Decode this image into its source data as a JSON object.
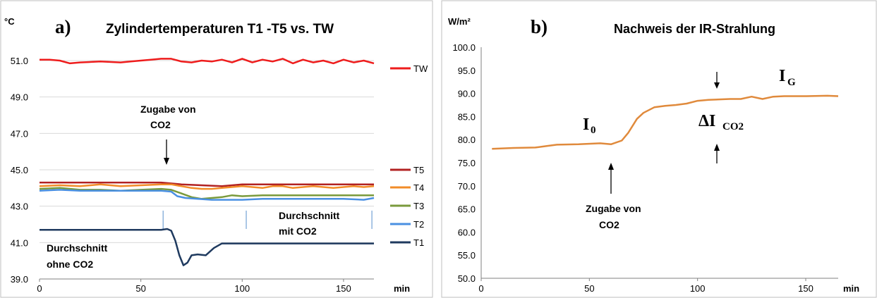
{
  "chart_data": [
    {
      "panel_label": "a)",
      "type": "line",
      "title": "Zylindertemperaturen T1 -T5 vs. TW",
      "ylabel": "°C",
      "xlabel": "min",
      "xlim": [
        0,
        165
      ],
      "ylim": [
        39.0,
        52.0
      ],
      "x_ticks": [
        0,
        50,
        100,
        150
      ],
      "y_ticks": [
        "39.0",
        "41.0",
        "43.0",
        "45.0",
        "47.0",
        "49.0",
        "51.0"
      ],
      "grid": "horizontal",
      "legend_placement": "right",
      "series": [
        {
          "name": "TW",
          "color": "#ee1c1c",
          "x": [
            0,
            5,
            10,
            15,
            20,
            30,
            40,
            45,
            50,
            55,
            60,
            65,
            70,
            75,
            80,
            85,
            90,
            95,
            100,
            105,
            110,
            115,
            120,
            125,
            130,
            135,
            140,
            145,
            150,
            155,
            160,
            165
          ],
          "values": [
            51.05,
            51.05,
            51.0,
            50.85,
            50.9,
            50.95,
            50.9,
            50.95,
            51.0,
            51.05,
            51.1,
            51.1,
            50.95,
            50.9,
            51.0,
            50.95,
            51.05,
            50.9,
            51.1,
            50.9,
            51.05,
            50.95,
            51.1,
            50.85,
            51.05,
            50.9,
            51.0,
            50.85,
            51.05,
            50.9,
            51.0,
            50.85
          ]
        },
        {
          "name": "T5",
          "color": "#b22222",
          "x": [
            0,
            20,
            40,
            60,
            65,
            70,
            80,
            90,
            100,
            110,
            120,
            130,
            140,
            150,
            160,
            165
          ],
          "values": [
            44.3,
            44.3,
            44.3,
            44.3,
            44.25,
            44.2,
            44.15,
            44.1,
            44.2,
            44.2,
            44.2,
            44.2,
            44.2,
            44.2,
            44.2,
            44.2
          ]
        },
        {
          "name": "T4",
          "color": "#f28c28",
          "x": [
            0,
            10,
            20,
            30,
            40,
            50,
            60,
            65,
            70,
            75,
            80,
            85,
            90,
            95,
            100,
            105,
            110,
            115,
            120,
            125,
            130,
            135,
            140,
            145,
            150,
            155,
            160,
            165
          ],
          "values": [
            44.1,
            44.15,
            44.1,
            44.2,
            44.1,
            44.15,
            44.2,
            44.2,
            44.1,
            44.0,
            43.95,
            43.95,
            44.0,
            44.05,
            44.1,
            44.05,
            44.0,
            44.1,
            44.1,
            44.0,
            44.05,
            44.1,
            44.05,
            44.0,
            44.05,
            44.1,
            44.05,
            44.1
          ]
        },
        {
          "name": "T3",
          "color": "#7a9a3c",
          "x": [
            0,
            10,
            20,
            30,
            40,
            50,
            60,
            65,
            70,
            75,
            80,
            85,
            90,
            95,
            100,
            110,
            120,
            130,
            140,
            150,
            160,
            165
          ],
          "values": [
            43.95,
            44.0,
            43.9,
            43.9,
            43.85,
            43.9,
            43.95,
            43.9,
            43.7,
            43.5,
            43.4,
            43.45,
            43.5,
            43.6,
            43.55,
            43.6,
            43.6,
            43.6,
            43.6,
            43.6,
            43.6,
            43.6
          ]
        },
        {
          "name": "T2",
          "color": "#4a90e2",
          "x": [
            0,
            10,
            20,
            30,
            40,
            50,
            60,
            65,
            68,
            72,
            78,
            85,
            90,
            100,
            110,
            120,
            130,
            140,
            150,
            160,
            165
          ],
          "values": [
            43.85,
            43.9,
            43.85,
            43.85,
            43.85,
            43.85,
            43.85,
            43.8,
            43.55,
            43.45,
            43.4,
            43.35,
            43.35,
            43.35,
            43.4,
            43.4,
            43.4,
            43.4,
            43.4,
            43.35,
            43.45
          ]
        },
        {
          "name": "T1",
          "color": "#1f3a5f",
          "x": [
            0,
            20,
            40,
            60,
            63,
            65,
            67,
            69,
            71,
            73,
            75,
            78,
            82,
            86,
            90,
            95,
            100,
            120,
            140,
            160,
            165
          ],
          "values": [
            41.7,
            41.7,
            41.7,
            41.7,
            41.75,
            41.65,
            41.1,
            40.3,
            39.75,
            39.9,
            40.3,
            40.35,
            40.3,
            40.7,
            40.95,
            40.95,
            40.95,
            40.95,
            40.95,
            40.95,
            40.95
          ]
        }
      ],
      "annotations": {
        "zugabe_line1": "Zugabe von",
        "zugabe_line2": "CO2",
        "ohne_line1": "Durchschnitt",
        "ohne_line2": "ohne CO2",
        "mit_line1": "Durchschnitt",
        "mit_line2": "mit CO2"
      },
      "marker_lines_x": [
        61,
        102,
        164
      ]
    },
    {
      "panel_label": "b)",
      "type": "line",
      "title": "Nachweis der IR-Strahlung",
      "ylabel": "W/m²",
      "xlabel": "min",
      "xlim": [
        0,
        165
      ],
      "ylim": [
        50.0,
        100.0
      ],
      "x_ticks": [
        0,
        50,
        100,
        150
      ],
      "y_ticks": [
        "50.0",
        "55.0",
        "60.0",
        "65.0",
        "70.0",
        "75.0",
        "80.0",
        "85.0",
        "90.0",
        "95.0",
        "100.0"
      ],
      "grid": "none",
      "legend_placement": "none",
      "series": [
        {
          "color": "#e08a3c",
          "x": [
            5,
            15,
            25,
            30,
            35,
            45,
            55,
            60,
            65,
            68,
            72,
            75,
            80,
            85,
            90,
            95,
            100,
            105,
            110,
            115,
            120,
            125,
            130,
            135,
            140,
            150,
            160,
            165
          ],
          "values": [
            78.0,
            78.2,
            78.3,
            78.6,
            78.9,
            79.0,
            79.2,
            79.0,
            79.8,
            81.5,
            84.5,
            85.8,
            87.0,
            87.3,
            87.5,
            87.8,
            88.4,
            88.6,
            88.7,
            88.8,
            88.8,
            89.3,
            88.8,
            89.3,
            89.4,
            89.4,
            89.5,
            89.4
          ]
        }
      ],
      "annotations": {
        "i0_main": "I",
        "i0_sub": "0",
        "ig_main": "I",
        "ig_sub": "G",
        "dico2_main": "ΔI",
        "dico2_sub": "CO2",
        "zugabe_line1": "Zugabe von",
        "zugabe_line2": "CO2"
      }
    }
  ]
}
